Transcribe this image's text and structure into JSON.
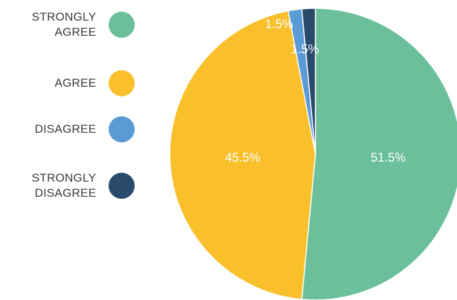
{
  "chart_data": {
    "type": "pie",
    "title": "",
    "legend_position": "left",
    "slices": [
      {
        "label": "STRONGLY\nAGREE",
        "value": 51.5,
        "value_label": "51.5%",
        "color": "#6BBF9A"
      },
      {
        "label": "AGREE",
        "value": 45.5,
        "value_label": "45.5%",
        "color": "#F9C02C"
      },
      {
        "label": "DISAGREE",
        "value": 1.5,
        "value_label": "1.5%",
        "color": "#5B9BD5"
      },
      {
        "label": "STRONGLY\nDISAGREE",
        "value": 1.5,
        "value_label": "1.5%",
        "color": "#294A6B"
      }
    ]
  }
}
